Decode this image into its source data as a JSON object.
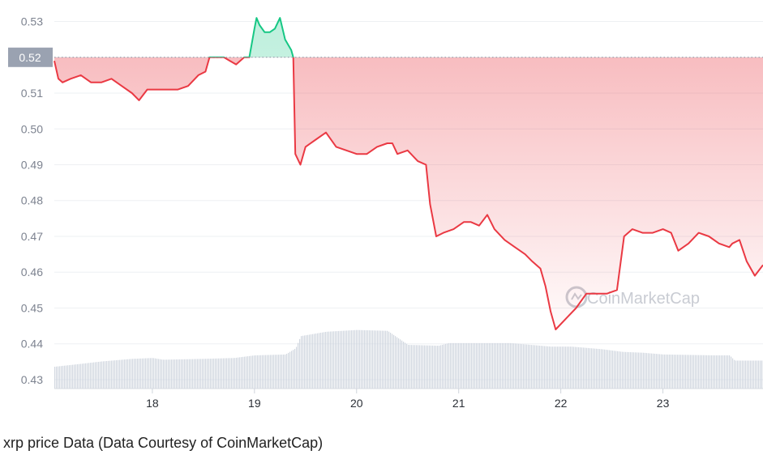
{
  "chart_data": {
    "type": "line",
    "x_unit": "day",
    "xlim": [
      17.04,
      23.98
    ],
    "ylim": [
      0.4275,
      0.536
    ],
    "y_ticks": [
      0.43,
      0.44,
      0.45,
      0.46,
      0.47,
      0.48,
      0.49,
      0.5,
      0.51,
      0.52,
      0.53
    ],
    "x_ticks": [
      18,
      19,
      20,
      21,
      22,
      23
    ],
    "reference_line": {
      "value": 0.52,
      "label": "0.52"
    },
    "colors": {
      "above": "#16c784",
      "below": "#ea3943",
      "ref_badge": "#9aa2b1"
    },
    "watermark": "CoinMarketCap",
    "grid": "horizontal",
    "price": {
      "x": [
        17.04,
        17.08,
        17.12,
        17.2,
        17.3,
        17.4,
        17.5,
        17.6,
        17.7,
        17.8,
        17.87,
        17.95,
        18.05,
        18.15,
        18.25,
        18.35,
        18.45,
        18.52,
        18.56,
        18.6,
        18.64,
        18.7,
        18.76,
        18.82,
        18.9,
        18.95,
        19.0,
        19.02,
        19.05,
        19.1,
        19.15,
        19.2,
        19.25,
        19.3,
        19.36,
        19.38,
        19.4,
        19.45,
        19.5,
        19.6,
        19.7,
        19.8,
        19.9,
        20.0,
        20.1,
        20.2,
        20.3,
        20.35,
        20.4,
        20.5,
        20.6,
        20.68,
        20.72,
        20.78,
        20.85,
        20.95,
        21.05,
        21.12,
        21.2,
        21.28,
        21.35,
        21.45,
        21.55,
        21.65,
        21.72,
        21.8,
        21.85,
        21.9,
        21.95,
        22.05,
        22.15,
        22.25,
        22.35,
        22.45,
        22.55,
        22.62,
        22.7,
        22.8,
        22.9,
        23.0,
        23.08,
        23.15,
        23.25,
        23.35,
        23.45,
        23.55,
        23.65,
        23.68,
        23.75,
        23.82,
        23.9,
        23.98
      ],
      "y": [
        0.519,
        0.514,
        0.513,
        0.514,
        0.515,
        0.513,
        0.513,
        0.514,
        0.512,
        0.51,
        0.508,
        0.511,
        0.511,
        0.511,
        0.511,
        0.512,
        0.515,
        0.516,
        0.52,
        0.52,
        0.52,
        0.52,
        0.519,
        0.518,
        0.52,
        0.52,
        0.528,
        0.531,
        0.529,
        0.527,
        0.527,
        0.528,
        0.531,
        0.525,
        0.522,
        0.52,
        0.493,
        0.49,
        0.495,
        0.497,
        0.499,
        0.495,
        0.494,
        0.493,
        0.493,
        0.495,
        0.496,
        0.496,
        0.493,
        0.494,
        0.491,
        0.49,
        0.479,
        0.47,
        0.471,
        0.472,
        0.474,
        0.474,
        0.473,
        0.476,
        0.472,
        0.469,
        0.467,
        0.465,
        0.463,
        0.461,
        0.456,
        0.449,
        0.444,
        0.447,
        0.45,
        0.454,
        0.454,
        0.454,
        0.455,
        0.47,
        0.472,
        0.471,
        0.471,
        0.472,
        0.471,
        0.466,
        0.468,
        0.471,
        0.47,
        0.468,
        0.467,
        0.468,
        0.469,
        0.463,
        0.459,
        0.462
      ]
    },
    "volume": {
      "x": [
        17.04,
        17.2,
        17.5,
        17.8,
        18.0,
        18.1,
        18.5,
        18.8,
        19.0,
        19.3,
        19.4,
        19.45,
        19.7,
        20.0,
        20.3,
        20.4,
        20.5,
        20.8,
        20.9,
        21.5,
        21.9,
        22.1,
        22.4,
        22.6,
        22.8,
        23.0,
        23.5,
        23.65,
        23.7,
        23.98
      ],
      "volume_level": [
        0.25,
        0.27,
        0.31,
        0.34,
        0.35,
        0.33,
        0.34,
        0.35,
        0.38,
        0.39,
        0.46,
        0.6,
        0.65,
        0.67,
        0.66,
        0.58,
        0.5,
        0.49,
        0.52,
        0.52,
        0.48,
        0.48,
        0.45,
        0.42,
        0.41,
        0.39,
        0.38,
        0.38,
        0.32,
        0.32
      ]
    }
  },
  "caption": "xrp price Data (Data Courtesy of CoinMarketCap)"
}
